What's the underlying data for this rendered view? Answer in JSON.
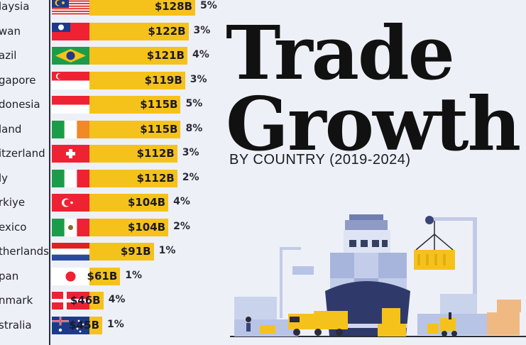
{
  "header": {
    "title_line1": "Trade",
    "title_line2": "Growth",
    "subtitle": "BY COUNTRY (2019-2024)"
  },
  "colors": {
    "bar": "#f5c21b",
    "axis": "#2b2b3a",
    "background": "#eef0f8"
  },
  "chart_data": {
    "type": "bar",
    "orientation": "horizontal",
    "categories": [
      "laysia",
      "wan",
      "azil",
      "gapore",
      "donesia",
      "land",
      "itzerland",
      "ly",
      "rkiye",
      "exico",
      "therlands",
      "pan",
      "nmark",
      "stralia"
    ],
    "values": [
      128,
      122,
      121,
      119,
      115,
      115,
      112,
      112,
      104,
      104,
      91,
      61,
      46,
      45
    ],
    "value_labels": [
      "$128B",
      "$122B",
      "$121B",
      "$119B",
      "$115B",
      "$115B",
      "$112B",
      "$112B",
      "$104B",
      "$104B",
      "$91B",
      "$61B",
      "$46B",
      "$45B"
    ],
    "percent_labels": [
      "5%",
      "3%",
      "4%",
      "3%",
      "5%",
      "8%",
      "3%",
      "2%",
      "4%",
      "2%",
      "1%",
      "1%",
      "4%",
      "1%"
    ],
    "flags": [
      "malaysia-flag",
      "taiwan-flag",
      "brazil-flag",
      "singapore-flag",
      "indonesia-flag",
      "ireland-flag",
      "switzerland-flag",
      "italy-flag",
      "turkiye-flag",
      "mexico-flag",
      "netherlands-flag",
      "japan-flag",
      "denmark-flag",
      "australia-flag"
    ]
  }
}
